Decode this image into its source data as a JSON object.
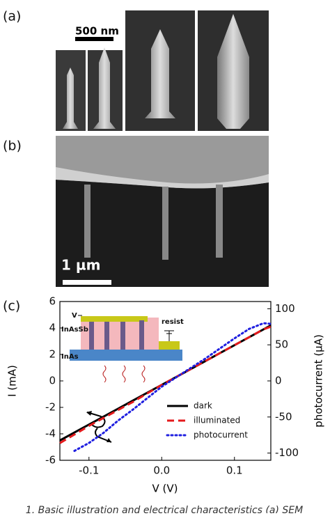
{
  "panels": {
    "a": "(a)",
    "b": "(b)",
    "c": "(c)"
  },
  "scale_bars": {
    "a": "500 nm",
    "b": "1 µm"
  },
  "inset": {
    "v": "V",
    "top_layer": "InAsSb",
    "resist": "resist",
    "substrate": "InAs"
  },
  "caption": "1. Basic illustration and electrical characteristics (a) SEM",
  "chart_data": {
    "type": "line",
    "xlabel": "V (V)",
    "ylabel": "I (mA)",
    "y2label": "photocurrent (µA)",
    "x": [
      -0.14,
      -0.12,
      -0.1,
      -0.08,
      -0.06,
      -0.04,
      -0.02,
      0,
      0.02,
      0.04,
      0.06,
      0.08,
      0.1,
      0.12,
      0.14,
      0.15
    ],
    "series": [
      {
        "name": "dark",
        "color": "#000000",
        "dash": "solid",
        "values": [
          -4.5,
          -3.9,
          -3.3,
          -2.7,
          -2.1,
          -1.5,
          -0.9,
          -0.3,
          0.3,
          0.9,
          1.5,
          2.1,
          2.7,
          3.3,
          3.9,
          4.2
        ]
      },
      {
        "name": "illuminated",
        "color": "#e41a1c",
        "dash": "dashed",
        "values": [
          -4.7,
          -4.05,
          -3.4,
          -2.8,
          -2.2,
          -1.6,
          -0.95,
          -0.3,
          0.3,
          0.9,
          1.5,
          2.1,
          2.7,
          3.3,
          3.9,
          4.1
        ]
      },
      {
        "name": "photocurrent",
        "color": "#1f1fe0",
        "dash": "dotted",
        "axis": "y2",
        "values": [
          null,
          -97,
          -86,
          -72,
          -55,
          -40,
          -24,
          -8,
          5,
          18,
          31,
          45,
          59,
          72,
          80,
          79
        ]
      }
    ],
    "xlim": [
      -0.14,
      0.15
    ],
    "xticks": [
      -0.1,
      {
        "value": 0,
        "label": "0.0"
      },
      0.1
    ],
    "ylim": [
      -6,
      6
    ],
    "yticks": [
      -6,
      -4,
      -2,
      0,
      2,
      4,
      6
    ],
    "y2lim": [
      -110,
      110
    ],
    "y2ticks": [
      -100,
      -50,
      0,
      50,
      100
    ],
    "legend": "lower right"
  }
}
